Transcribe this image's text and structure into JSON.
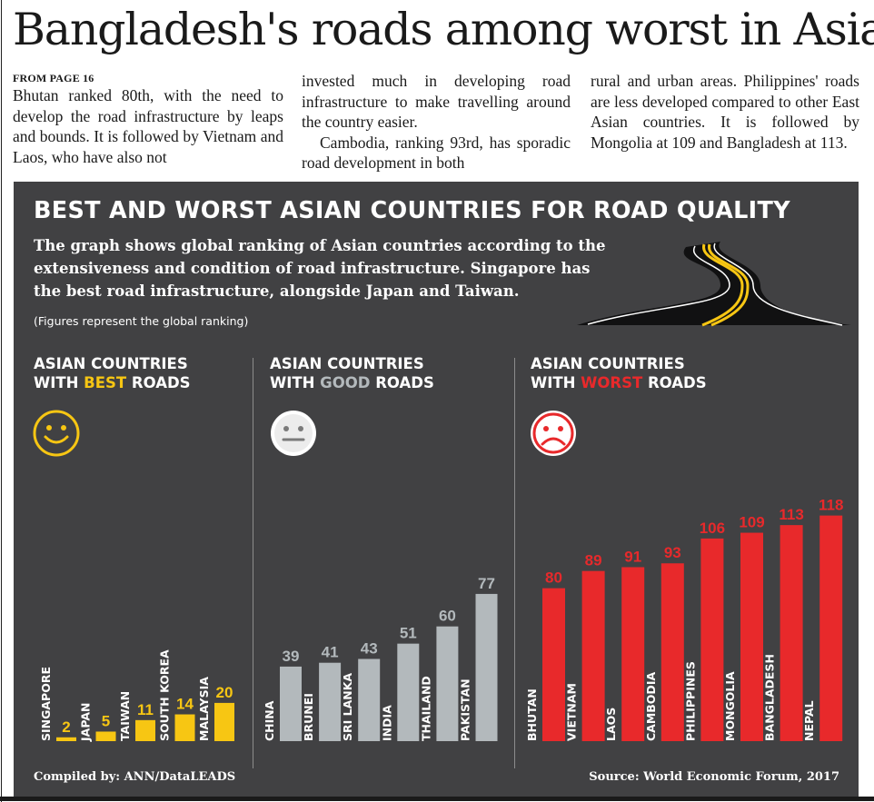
{
  "headline": "Bangladesh's roads among worst in Asia",
  "article": {
    "from_page": "FROM PAGE 16",
    "col1": "Bhutan ranked 80th, with the need to develop the road infrastructure by leaps and bounds. It is followed by Vietnam and Laos, who have also not",
    "col2_p1": "invested much in developing road infrastructure to make travelling around the country easier.",
    "col2_p2": "Cambodia, ranking 93rd, has sporadic road development in both",
    "col3": "rural and urban areas. Philippines' roads are less developed compared to other East Asian countries. It is followed by Mongolia at 109 and Bangladesh at 113."
  },
  "graphic": {
    "title": "BEST AND WORST ASIAN COUNTRIES FOR ROAD QUALITY",
    "subtitle": "The graph shows global ranking of Asian countries according to the extensiveness and condition of road infrastructure. Singapore has the best road infrastructure, alongside Japan and Taiwan.",
    "note": "(Figures represent the global ranking)",
    "credit": "Compiled by: ANN/DataLEADS",
    "source": "Source: World Economic Forum, 2017",
    "sections": {
      "best": {
        "line1": "ASIAN COUNTRIES",
        "pre": "WITH ",
        "hl": "BEST",
        "post": " ROADS"
      },
      "good": {
        "line1": "ASIAN COUNTRIES",
        "pre": "WITH ",
        "hl": "GOOD",
        "post": " ROADS"
      },
      "worst": {
        "line1": "ASIAN COUNTRIES",
        "pre": "WITH ",
        "hl": "WORST",
        "post": " ROADS"
      }
    },
    "faces": {
      "best": "smiley-face-icon",
      "good": "neutral-face-icon",
      "worst": "sad-face-icon"
    }
  },
  "colors": {
    "best": "#f7c613",
    "good": "#b3b9bc",
    "worst": "#e8292b",
    "panel": "#414143"
  },
  "chart_data": {
    "type": "bar",
    "title": "BEST AND WORST ASIAN COUNTRIES FOR ROAD QUALITY",
    "ylabel": "",
    "groups": [
      {
        "name": "ASIAN COUNTRIES WITH BEST ROADS",
        "color": "#f7c613",
        "categories": [
          "SINGAPORE",
          "JAPAN",
          "TAIWAN",
          "SOUTH KOREA",
          "MALAYSIA"
        ],
        "values": [
          2,
          5,
          11,
          14,
          20
        ]
      },
      {
        "name": "ASIAN COUNTRIES WITH GOOD ROADS",
        "color": "#b3b9bc",
        "categories": [
          "CHINA",
          "BRUNEI",
          "SRI LANKA",
          "INDIA",
          "THAILAND",
          "PAKISTAN"
        ],
        "values": [
          39,
          41,
          43,
          51,
          60,
          77
        ]
      },
      {
        "name": "ASIAN COUNTRIES WITH WORST ROADS",
        "color": "#e8292b",
        "categories": [
          "BHUTAN",
          "VIETNAM",
          "LAOS",
          "CAMBODIA",
          "PHILIPPINES",
          "MONGOLIA",
          "BANGLADESH",
          "NEPAL"
        ],
        "values": [
          80,
          89,
          91,
          93,
          106,
          109,
          113,
          118
        ]
      }
    ]
  }
}
